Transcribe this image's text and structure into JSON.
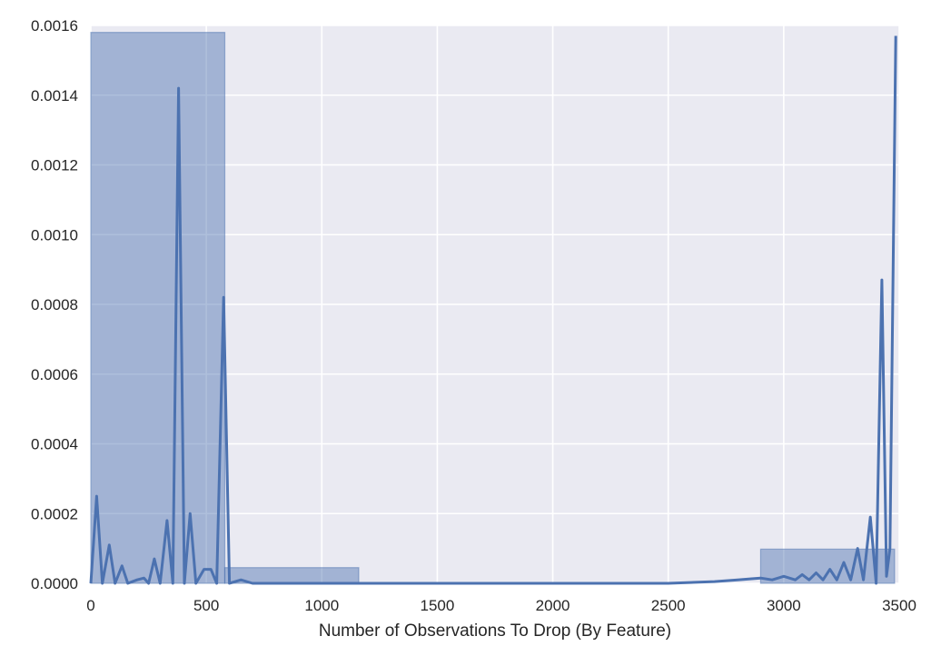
{
  "chart_data": {
    "type": "bar",
    "title": "",
    "xlabel": "Number of Observations To Drop (By Feature)",
    "ylabel": "",
    "xlim": [
      0,
      3500
    ],
    "ylim": [
      0,
      0.0016
    ],
    "grid": true,
    "xticks": [
      0,
      500,
      1000,
      1500,
      2000,
      2500,
      3000,
      3500
    ],
    "xtick_labels": [
      "0",
      "500",
      "1000",
      "1500",
      "2000",
      "2500",
      "3000",
      "3500"
    ],
    "yticks": [
      0,
      0.0002,
      0.0004,
      0.0006,
      0.0008,
      0.001,
      0.0012,
      0.0014,
      0.0016
    ],
    "ytick_labels": [
      "0.0000",
      "0.0002",
      "0.0004",
      "0.0006",
      "0.0008",
      "0.0010",
      "0.0012",
      "0.0014",
      "0.0016"
    ],
    "histogram": {
      "color": "#4c72b0",
      "bins": [
        {
          "x0": 0,
          "x1": 580,
          "value": 0.00158
        },
        {
          "x0": 580,
          "x1": 1160,
          "value": 4.5e-05
        },
        {
          "x0": 1160,
          "x1": 1740,
          "value": 0
        },
        {
          "x0": 1740,
          "x1": 2320,
          "value": 0
        },
        {
          "x0": 2320,
          "x1": 2900,
          "value": 0
        },
        {
          "x0": 2900,
          "x1": 3480,
          "value": 9.8e-05
        }
      ]
    },
    "kde": {
      "color": "#4c72b0",
      "points": [
        [
          0,
          0
        ],
        [
          25,
          0.00025
        ],
        [
          50,
          0
        ],
        [
          80,
          0.00011
        ],
        [
          105,
          0
        ],
        [
          135,
          5e-05
        ],
        [
          160,
          0
        ],
        [
          200,
          1e-05
        ],
        [
          230,
          1.5e-05
        ],
        [
          250,
          0
        ],
        [
          275,
          7e-05
        ],
        [
          300,
          0
        ],
        [
          330,
          0.00018
        ],
        [
          355,
          0
        ],
        [
          380,
          0.00142
        ],
        [
          405,
          0
        ],
        [
          430,
          0.0002
        ],
        [
          455,
          0
        ],
        [
          490,
          4e-05
        ],
        [
          520,
          4e-05
        ],
        [
          545,
          0
        ],
        [
          575,
          0.00082
        ],
        [
          600,
          0
        ],
        [
          650,
          1e-05
        ],
        [
          700,
          0
        ],
        [
          800,
          0
        ],
        [
          1000,
          0
        ],
        [
          1500,
          0
        ],
        [
          2000,
          0
        ],
        [
          2500,
          0
        ],
        [
          2700,
          5e-06
        ],
        [
          2800,
          1e-05
        ],
        [
          2900,
          1.5e-05
        ],
        [
          2950,
          1e-05
        ],
        [
          3000,
          2e-05
        ],
        [
          3050,
          1e-05
        ],
        [
          3080,
          2.5e-05
        ],
        [
          3110,
          1e-05
        ],
        [
          3140,
          3e-05
        ],
        [
          3170,
          1e-05
        ],
        [
          3200,
          4e-05
        ],
        [
          3230,
          1e-05
        ],
        [
          3260,
          6e-05
        ],
        [
          3290,
          1e-05
        ],
        [
          3320,
          0.0001
        ],
        [
          3345,
          1e-05
        ],
        [
          3375,
          0.00019
        ],
        [
          3400,
          0
        ],
        [
          3425,
          0.00087
        ],
        [
          3445,
          2e-05
        ],
        [
          3460,
          0.0001
        ],
        [
          3485,
          0.00157
        ]
      ]
    }
  }
}
